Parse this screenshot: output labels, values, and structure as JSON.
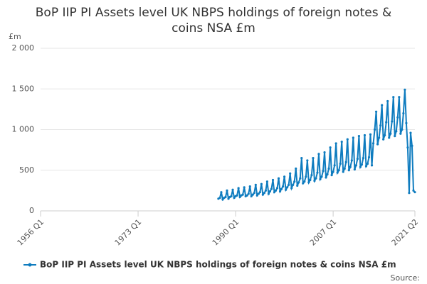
{
  "chart_data": {
    "type": "line",
    "title": "BoP IIP PI Assets level UK NBPS holdings of foreign notes & coins NSA £m",
    "y_label": "£m",
    "source": "Source:",
    "categories": [
      "1956 Q1",
      null,
      null,
      null,
      null,
      null,
      null,
      null,
      null,
      null,
      null,
      null,
      null,
      null,
      null,
      null,
      null,
      null,
      null,
      null,
      null,
      null,
      null,
      null,
      null,
      null,
      null,
      null,
      null,
      null,
      null,
      null,
      null,
      null,
      null,
      null,
      null,
      null,
      null,
      null,
      null,
      null,
      null,
      null,
      null,
      null,
      null,
      null,
      null,
      null,
      null,
      null,
      null,
      null,
      null,
      null,
      null,
      null,
      null,
      null,
      null,
      null,
      null,
      null,
      null,
      null,
      null,
      null,
      "1973 Q1",
      null,
      null,
      null,
      null,
      null,
      null,
      null,
      null,
      null,
      null,
      null,
      null,
      null,
      null,
      null,
      null,
      null,
      null,
      null,
      null,
      null,
      null,
      null,
      null,
      null,
      null,
      null,
      null,
      null,
      null,
      null,
      null,
      null,
      null,
      null,
      null,
      null,
      null,
      null,
      null,
      null,
      null,
      null,
      null,
      null,
      null,
      null,
      null,
      null,
      null,
      null,
      null,
      null,
      null,
      null,
      null,
      null,
      null,
      null,
      null,
      null,
      null,
      null,
      null,
      null,
      null,
      null,
      "1990 Q1",
      null,
      null,
      null,
      null,
      null,
      null,
      null,
      null,
      null,
      null,
      null,
      null,
      null,
      null,
      null,
      null,
      null,
      null,
      null,
      null,
      null,
      null,
      null,
      null,
      null,
      null,
      null,
      null,
      null,
      null,
      null,
      null,
      null,
      null,
      null,
      null,
      null,
      null,
      null,
      null,
      null,
      null,
      null,
      null,
      null,
      null,
      null,
      null,
      null,
      null,
      null,
      null,
      null,
      null,
      null,
      null,
      null,
      null,
      null,
      null,
      null,
      null,
      null,
      null,
      null,
      null,
      null,
      "2007 Q1",
      null,
      null,
      null,
      null,
      null,
      null,
      null,
      null,
      null,
      null,
      null,
      null,
      null,
      null,
      null,
      null,
      null,
      null,
      null,
      null,
      null,
      null,
      null,
      null,
      null,
      null,
      null,
      null,
      null,
      null,
      null,
      null,
      null,
      null,
      null,
      null,
      null,
      null,
      null,
      null,
      null,
      null,
      null,
      null,
      null,
      null,
      null,
      null,
      null,
      null,
      null,
      null,
      null,
      null,
      null,
      null,
      "2021 Q2"
    ],
    "series": [
      {
        "name": "BoP IIP PI Assets level UK NBPS holdings of foreign notes & coins NSA £m",
        "color": "#0f7cbf",
        "values": [
          null,
          null,
          null,
          null,
          null,
          null,
          null,
          null,
          null,
          null,
          null,
          null,
          null,
          null,
          null,
          null,
          null,
          null,
          null,
          null,
          null,
          null,
          null,
          null,
          null,
          null,
          null,
          null,
          null,
          null,
          null,
          null,
          null,
          null,
          null,
          null,
          null,
          null,
          null,
          null,
          null,
          null,
          null,
          null,
          null,
          null,
          null,
          null,
          null,
          null,
          null,
          null,
          null,
          null,
          null,
          null,
          null,
          null,
          null,
          null,
          null,
          null,
          null,
          null,
          null,
          null,
          null,
          null,
          null,
          null,
          null,
          null,
          null,
          null,
          null,
          null,
          null,
          null,
          null,
          null,
          null,
          null,
          null,
          null,
          null,
          null,
          null,
          null,
          null,
          null,
          null,
          null,
          null,
          null,
          null,
          null,
          null,
          null,
          null,
          null,
          null,
          null,
          null,
          null,
          null,
          null,
          null,
          null,
          null,
          null,
          null,
          null,
          null,
          null,
          null,
          null,
          null,
          null,
          null,
          null,
          null,
          null,
          null,
          null,
          150,
          160,
          230,
          140,
          160,
          170,
          250,
          150,
          170,
          180,
          260,
          160,
          180,
          190,
          280,
          170,
          190,
          200,
          290,
          180,
          190,
          210,
          300,
          180,
          200,
          220,
          320,
          190,
          210,
          230,
          330,
          200,
          220,
          250,
          360,
          210,
          240,
          270,
          380,
          230,
          250,
          280,
          400,
          240,
          270,
          300,
          420,
          260,
          290,
          320,
          460,
          280,
          320,
          360,
          520,
          310,
          350,
          400,
          650,
          340,
          360,
          420,
          620,
          350,
          380,
          440,
          650,
          370,
          400,
          470,
          700,
          390,
          420,
          490,
          720,
          410,
          450,
          520,
          780,
          440,
          480,
          560,
          830,
          470,
          500,
          580,
          850,
          480,
          520,
          600,
          880,
          500,
          540,
          620,
          900,
          510,
          560,
          640,
          920,
          540,
          570,
          650,
          930,
          550,
          580,
          660,
          940,
          560,
          830,
          1000,
          1220,
          820,
          900,
          1050,
          1300,
          880,
          930,
          1090,
          1350,
          900,
          950,
          1100,
          1400,
          920,
          980,
          1150,
          1400,
          950,
          1000,
          1200,
          1490,
          1080,
          780,
          220,
          960,
          800,
          250,
          230
        ]
      }
    ],
    "ylim": [
      0,
      2000
    ],
    "yticks": [
      0,
      500,
      {
        "value": 1000,
        "label": "1 000"
      },
      {
        "value": 1500,
        "label": "1 500"
      },
      {
        "value": 2000,
        "label": "2 000"
      }
    ],
    "grid": true,
    "legend": "bottom"
  }
}
